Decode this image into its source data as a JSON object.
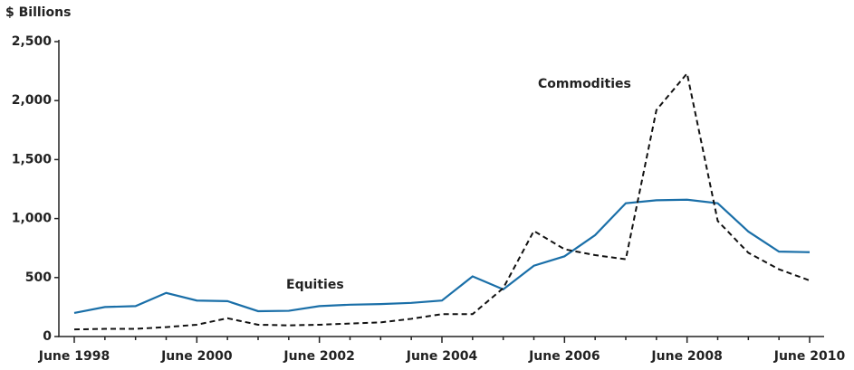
{
  "chart_data": {
    "type": "line",
    "y_axis_label": "$ Billions",
    "categories": [
      "June 1998",
      null,
      null,
      null,
      "June 2000",
      null,
      null,
      null,
      "June 2002",
      null,
      null,
      null,
      "June 2004",
      null,
      null,
      null,
      "June 2006",
      null,
      null,
      null,
      "June 2008",
      null,
      null,
      null,
      "June 2010"
    ],
    "series": [
      {
        "name": "Equities",
        "color": "#1a6fa8",
        "dashed": false,
        "values": [
          200,
          250,
          258,
          370,
          305,
          300,
          215,
          218,
          258,
          270,
          275,
          285,
          305,
          510,
          400,
          600,
          680,
          860,
          1130,
          1155,
          1160,
          1130,
          890,
          720,
          715
        ]
      },
      {
        "name": "Commodities",
        "color": "#111111",
        "dashed": true,
        "values": [
          60,
          65,
          65,
          80,
          100,
          155,
          100,
          95,
          100,
          110,
          120,
          150,
          190,
          190,
          410,
          895,
          740,
          690,
          655,
          1920,
          2230,
          980,
          710,
          570,
          475
        ]
      }
    ],
    "annotations": [
      {
        "text": "Commodities"
      },
      {
        "text": "Equities"
      }
    ],
    "ylim": [
      0,
      2500
    ],
    "yticks": [
      0,
      {
        "value": 500,
        "label": "500"
      },
      {
        "value": 1000,
        "label": "1,000"
      },
      {
        "value": 1500,
        "label": "1,500"
      },
      {
        "value": 2000,
        "label": "2,000"
      },
      {
        "value": 2500,
        "label": "2,500"
      }
    ],
    "grid": false
  }
}
